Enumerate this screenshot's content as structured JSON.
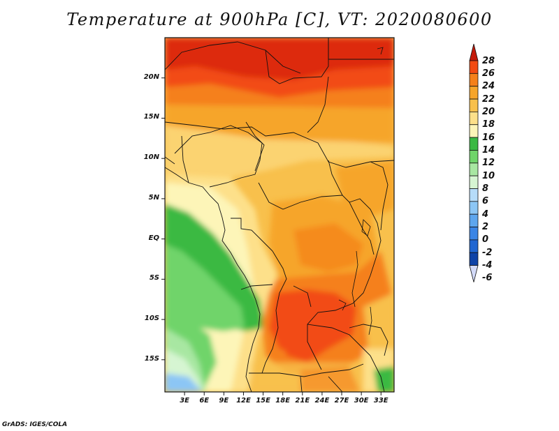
{
  "title": "Temperature at 900hPa [C], VT: 2020080600",
  "credit": "GrADS: IGES/COLA",
  "map": {
    "lon_range": [
      0,
      35
    ],
    "lat_range": [
      -19,
      25
    ],
    "lat_ticks": [
      {
        "lat": 20,
        "label": "20N"
      },
      {
        "lat": 15,
        "label": "15N"
      },
      {
        "lat": 10,
        "label": "10N"
      },
      {
        "lat": 5,
        "label": "5N"
      },
      {
        "lat": 0,
        "label": "EQ"
      },
      {
        "lat": -5,
        "label": "5S"
      },
      {
        "lat": -10,
        "label": "10S"
      },
      {
        "lat": -15,
        "label": "15S"
      }
    ],
    "lon_ticks": [
      {
        "lon": 3,
        "label": "3E"
      },
      {
        "lon": 6,
        "label": "6E"
      },
      {
        "lon": 9,
        "label": "9E"
      },
      {
        "lon": 12,
        "label": "12E"
      },
      {
        "lon": 15,
        "label": "15E"
      },
      {
        "lon": 18,
        "label": "18E"
      },
      {
        "lon": 21,
        "label": "21E"
      },
      {
        "lon": 24,
        "label": "24E"
      },
      {
        "lon": 27,
        "label": "27E"
      },
      {
        "lon": 30,
        "label": "30E"
      },
      {
        "lon": 33,
        "label": "33E"
      }
    ]
  },
  "colorbar": {
    "levels": [
      "28",
      "26",
      "24",
      "22",
      "20",
      "18",
      "16",
      "14",
      "12",
      "10",
      "8",
      "6",
      "4",
      "2",
      "0",
      "-2",
      "-4",
      "-6"
    ],
    "colors": [
      "#dd2a0c",
      "#f24b12",
      "#f5801a",
      "#f6a52a",
      "#f8c04c",
      "#fde08a",
      "#fdf5b8",
      "#3bb943",
      "#6fd46a",
      "#a8e7a2",
      "#d6f5d2",
      "#b6dcf9",
      "#8cc6f5",
      "#5ea6ee",
      "#3b85e5",
      "#2166d1",
      "#0f43a7",
      "#0b1d7d"
    ],
    "top_arrow_color": "#c41a0a",
    "bottom_arrow_color": "#d3daf8"
  }
}
